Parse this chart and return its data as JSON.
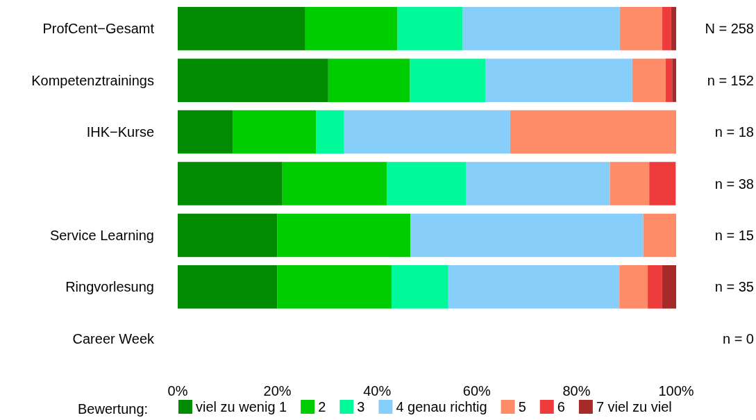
{
  "chart_data": {
    "type": "bar",
    "orientation": "horizontal",
    "stacked": true,
    "categories": [
      "ProfCent−Gesamt",
      "Kompetenztrainings",
      "IHK−Kurse",
      null,
      "Service Learning",
      "Ringvorlesung",
      "Career Week"
    ],
    "series": [
      {
        "name": "viel zu wenig 1",
        "color": "#008b00",
        "values": [
          25.6,
          30.2,
          11.1,
          21.0,
          20.0,
          20.0,
          0
        ]
      },
      {
        "name": "2",
        "color": "#00cd00",
        "values": [
          18.5,
          16.4,
          16.7,
          21.0,
          26.7,
          22.9,
          0
        ]
      },
      {
        "name": "3",
        "color": "#00fa9a",
        "values": [
          13.1,
          15.2,
          5.6,
          15.8,
          0,
          11.4,
          0
        ]
      },
      {
        "name": "4 genau richtig",
        "color": "#87cefa",
        "values": [
          31.5,
          29.4,
          33.3,
          28.9,
          46.7,
          34.3,
          0
        ]
      },
      {
        "name": "5",
        "color": "#ff8c69",
        "values": [
          8.5,
          6.7,
          33.3,
          7.9,
          6.6,
          5.7,
          0
        ]
      },
      {
        "name": "6",
        "color": "#ee3b3b",
        "values": [
          1.8,
          1.3,
          0,
          5.3,
          0,
          2.9,
          0
        ]
      },
      {
        "name": "7 viel zu viel",
        "color": "#a52a2a",
        "values": [
          1.0,
          0.8,
          0,
          0,
          0,
          2.8,
          0
        ]
      }
    ],
    "xlim": [
      0,
      100
    ],
    "xticks": [
      {
        "value": 0,
        "label": "0%"
      },
      {
        "value": 20,
        "label": "20%"
      },
      {
        "value": 40,
        "label": "40%"
      },
      {
        "value": 60,
        "label": "60%"
      },
      {
        "value": 80,
        "label": "80%"
      },
      {
        "value": 100,
        "label": "100%"
      }
    ],
    "legend_title": "Bewertung:",
    "legend": "bottom",
    "grid": false,
    "annotations": [
      "N = 258",
      "n = 152",
      "n = 18",
      "n = 38",
      "n = 15",
      "n = 35",
      "n = 0"
    ]
  }
}
